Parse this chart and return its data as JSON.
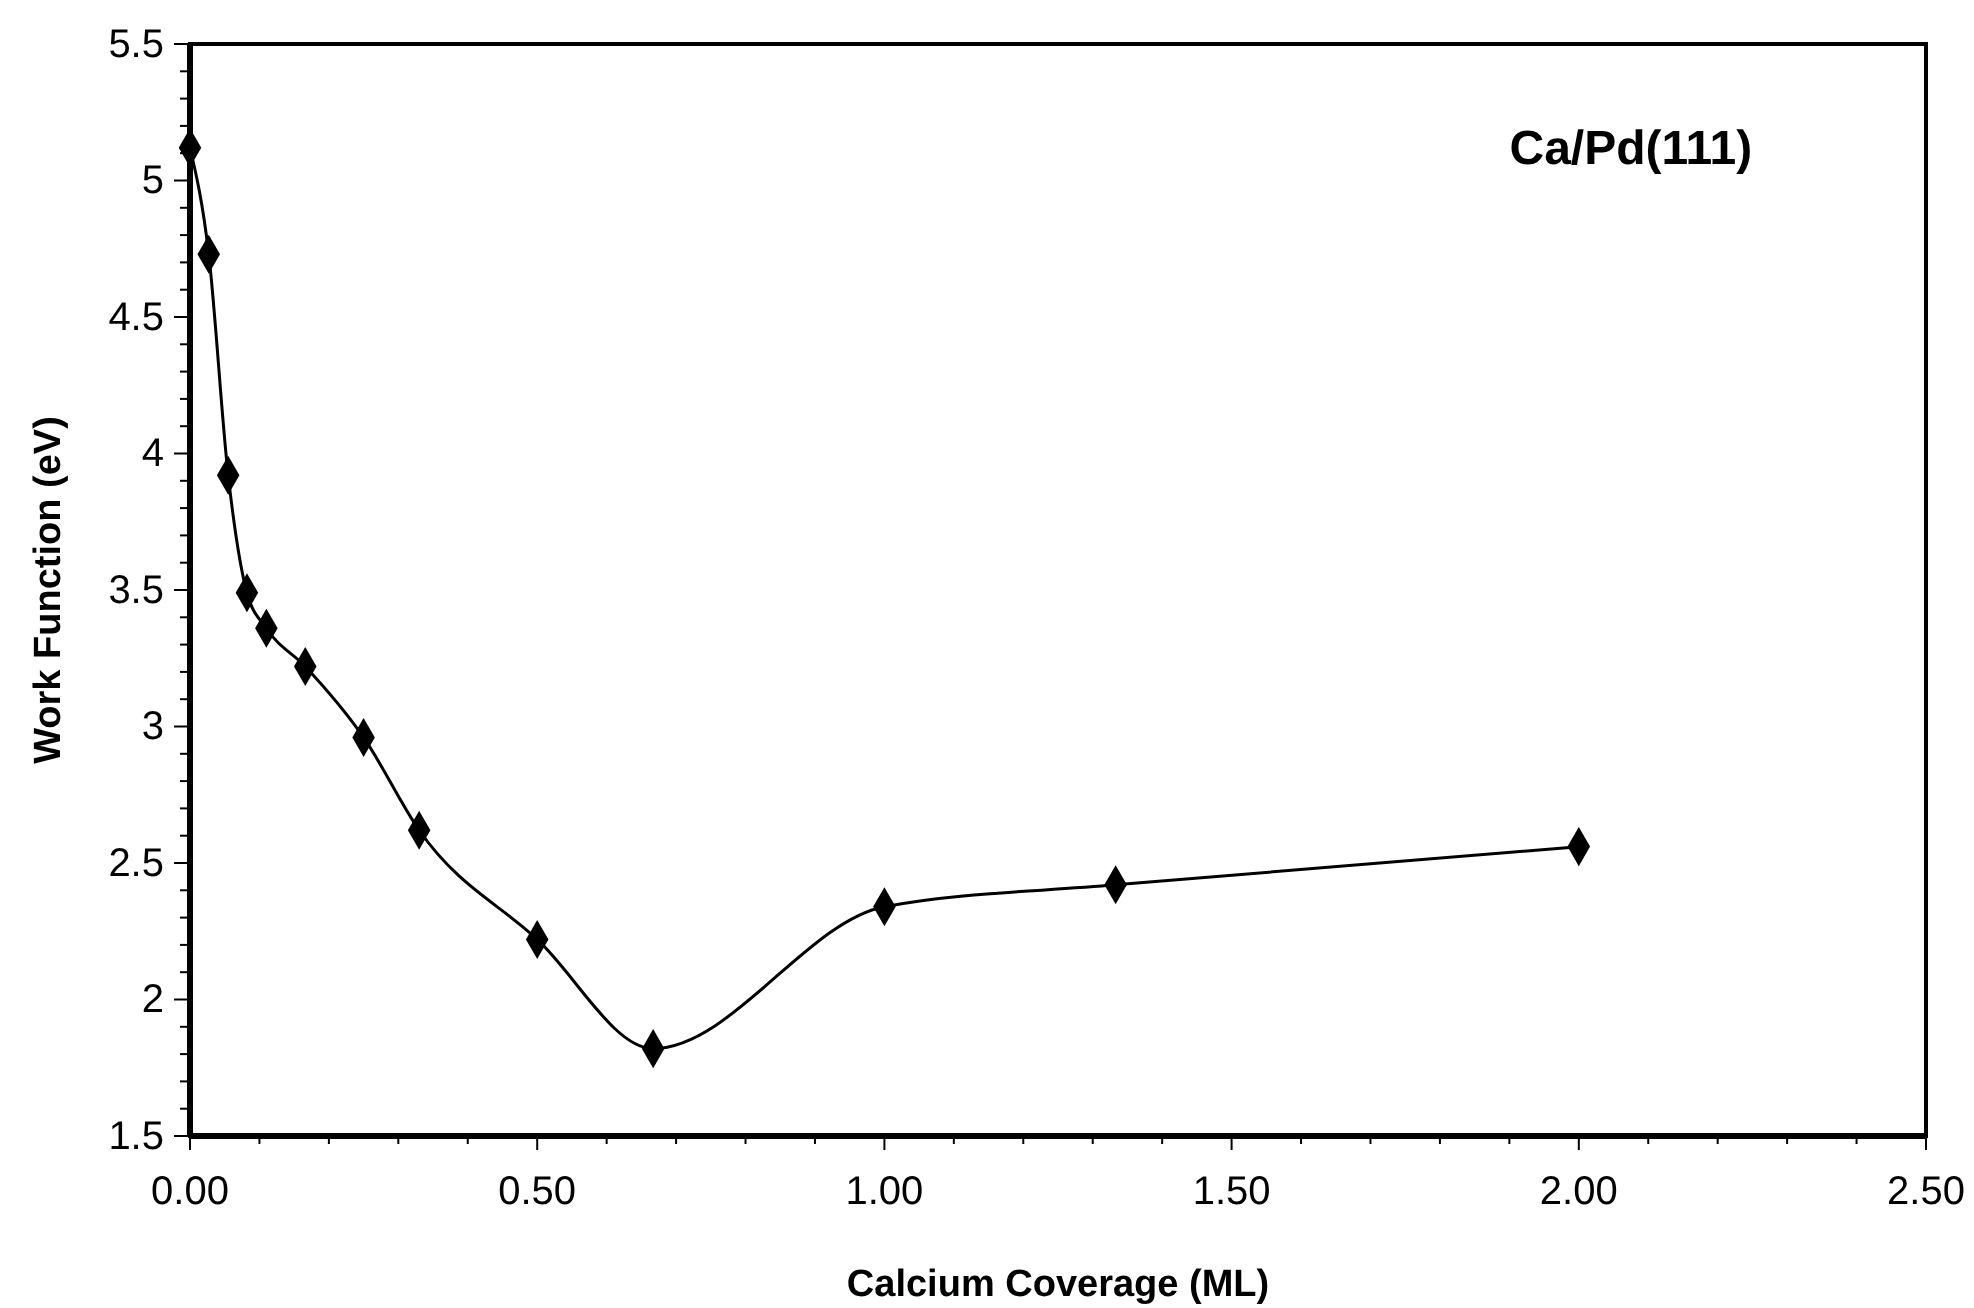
{
  "chart_data": {
    "type": "line",
    "xlabel": "Calcium Coverage (ML)",
    "ylabel": "Work Function (eV)",
    "annotations": [
      "Ca/Pd(111)"
    ],
    "x": [
      0,
      0.027,
      0.055,
      0.082,
      0.11,
      0.166,
      0.25,
      0.33,
      0.5,
      0.667,
      1.0,
      1.333,
      2.0
    ],
    "series": [
      {
        "color": "#000000",
        "values": [
          5.12,
          4.73,
          3.92,
          3.49,
          3.36,
          3.22,
          2.96,
          2.62,
          2.22,
          1.82,
          2.34,
          2.42,
          2.56
        ]
      }
    ],
    "marker": "diamond",
    "line_style": "solid",
    "grid": false,
    "xlim": [
      0,
      2.5
    ],
    "ylim": [
      1.5,
      5.5
    ],
    "xticks": [
      {
        "value": 0,
        "label": "0.00"
      },
      {
        "value": 0.1,
        "label": null
      },
      {
        "value": 0.2,
        "label": null
      },
      {
        "value": 0.3,
        "label": null
      },
      {
        "value": 0.4,
        "label": null
      },
      {
        "value": 0.5,
        "label": "0.50"
      },
      {
        "value": 0.6,
        "label": null
      },
      {
        "value": 0.7,
        "label": null
      },
      {
        "value": 0.8,
        "label": null
      },
      {
        "value": 0.9,
        "label": null
      },
      {
        "value": 1.0,
        "label": "1.00"
      },
      {
        "value": 1.1,
        "label": null
      },
      {
        "value": 1.2,
        "label": null
      },
      {
        "value": 1.3,
        "label": null
      },
      {
        "value": 1.4,
        "label": null
      },
      {
        "value": 1.5,
        "label": "1.50"
      },
      {
        "value": 1.6,
        "label": null
      },
      {
        "value": 1.7,
        "label": null
      },
      {
        "value": 1.8,
        "label": null
      },
      {
        "value": 1.9,
        "label": null
      },
      {
        "value": 2.0,
        "label": "2.00"
      },
      {
        "value": 2.1,
        "label": null
      },
      {
        "value": 2.2,
        "label": null
      },
      {
        "value": 2.3,
        "label": null
      },
      {
        "value": 2.4,
        "label": null
      },
      {
        "value": 2.5,
        "label": "2.50"
      }
    ],
    "yticks": [
      1.5,
      {
        "value": 1.6,
        "label": null
      },
      {
        "value": 1.7,
        "label": null
      },
      {
        "value": 1.8,
        "label": null
      },
      {
        "value": 1.9,
        "label": null
      },
      2,
      {
        "value": 2.1,
        "label": null
      },
      {
        "value": 2.2,
        "label": null
      },
      {
        "value": 2.3,
        "label": null
      },
      {
        "value": 2.4,
        "label": null
      },
      2.5,
      {
        "value": 2.6,
        "label": null
      },
      {
        "value": 2.7,
        "label": null
      },
      {
        "value": 2.8,
        "label": null
      },
      {
        "value": 2.9,
        "label": null
      },
      3,
      {
        "value": 3.1,
        "label": null
      },
      {
        "value": 3.2,
        "label": null
      },
      {
        "value": 3.3,
        "label": null
      },
      {
        "value": 3.4,
        "label": null
      },
      3.5,
      {
        "value": 3.6,
        "label": null
      },
      {
        "value": 3.7,
        "label": null
      },
      {
        "value": 3.8,
        "label": null
      },
      {
        "value": 3.9,
        "label": null
      },
      4,
      {
        "value": 4.1,
        "label": null
      },
      {
        "value": 4.2,
        "label": null
      },
      {
        "value": 4.3,
        "label": null
      },
      {
        "value": 4.4,
        "label": null
      },
      4.5,
      {
        "value": 4.6,
        "label": null
      },
      {
        "value": 4.7,
        "label": null
      },
      {
        "value": 4.8,
        "label": null
      },
      {
        "value": 4.9,
        "label": null
      },
      5,
      {
        "value": 5.1,
        "label": null
      },
      {
        "value": 5.2,
        "label": null
      },
      {
        "value": 5.3,
        "label": null
      },
      {
        "value": 5.4,
        "label": null
      },
      5.5
    ]
  }
}
